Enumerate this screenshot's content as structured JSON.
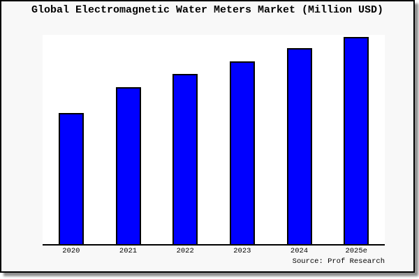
{
  "title": "Global Electromagnetic Water Meters Market (Million USD)",
  "source_caption": "Source: Prof Research",
  "colors": {
    "bar_fill": "#0000ff",
    "bar_border": "#000000",
    "axis": "#000000",
    "plot_background": "#ffffff",
    "frame_background": "#f8f8f8",
    "frame_border": "#000000",
    "shadow": "#8f8f8f",
    "text": "#000000"
  },
  "chart_data": {
    "type": "bar",
    "title": "Global Electromagnetic Water Meters Market (Million USD)",
    "categories": [
      "2020",
      "2021",
      "2022",
      "2023",
      "2024",
      "2025e"
    ],
    "values": [
      188,
      225,
      244,
      262,
      281,
      297
    ],
    "values_relative_to_2025e_pct": [
      63.3,
      75.8,
      82.2,
      88.2,
      94.6,
      100
    ],
    "value_axis_note": "no y-axis ticks or gridlines shown; values are relative bar heights (px) read from the image",
    "xlabel": "",
    "ylabel": "",
    "ylim": [
      0,
      300
    ],
    "grid": false,
    "legend": false,
    "bar_color": "#0000ff",
    "bar_border_color": "#000000",
    "source_caption": "Source: Prof Research"
  }
}
